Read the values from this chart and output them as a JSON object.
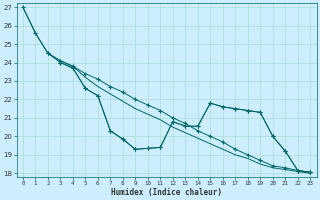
{
  "xlabel": "Humidex (Indice chaleur)",
  "bg_color": "#cceeff",
  "line_color": "#006666",
  "grid_color": "#aaddcc",
  "xlim": [
    -0.5,
    23.5
  ],
  "ylim": [
    17.8,
    27.2
  ],
  "xticks": [
    0,
    1,
    2,
    3,
    4,
    5,
    6,
    7,
    8,
    9,
    10,
    11,
    12,
    13,
    14,
    15,
    16,
    17,
    18,
    19,
    20,
    21,
    22,
    23
  ],
  "yticks": [
    18,
    19,
    20,
    21,
    22,
    23,
    24,
    25,
    26,
    27
  ],
  "series": [
    {
      "x": [
        0,
        1,
        2,
        3,
        4,
        5,
        6,
        7,
        8,
        9,
        10,
        11,
        12,
        13,
        14,
        15,
        16,
        17,
        18,
        19,
        20,
        21,
        22,
        23
      ],
      "y": [
        27.0,
        25.6,
        24.5,
        24.1,
        23.8,
        23.4,
        23.1,
        22.7,
        22.4,
        22.0,
        21.7,
        21.4,
        21.0,
        20.7,
        20.3,
        20.0,
        19.7,
        19.3,
        19.0,
        18.7,
        18.4,
        18.3,
        18.15,
        18.05
      ],
      "marker": true
    },
    {
      "x": [
        0,
        1,
        2,
        3,
        4,
        5,
        6,
        7,
        8,
        9,
        10,
        11,
        12,
        13,
        14,
        15,
        16,
        17,
        18,
        19,
        20,
        21,
        22,
        23
      ],
      "y": [
        27.0,
        25.6,
        24.5,
        24.1,
        23.8,
        23.2,
        22.7,
        22.3,
        21.9,
        21.5,
        21.2,
        20.9,
        20.5,
        20.2,
        19.9,
        19.6,
        19.3,
        19.0,
        18.8,
        18.5,
        18.3,
        18.2,
        18.1,
        18.0
      ],
      "marker": false
    },
    {
      "x": [
        2,
        3,
        4,
        5,
        6,
        7,
        8,
        9,
        10,
        11,
        12,
        13,
        14,
        15,
        16,
        17,
        18,
        19,
        20,
        21,
        22,
        23
      ],
      "y": [
        24.5,
        24.0,
        23.7,
        22.6,
        22.2,
        20.3,
        19.85,
        19.3,
        19.35,
        19.4,
        20.8,
        20.55,
        20.55,
        21.8,
        21.6,
        21.5,
        21.4,
        21.3,
        20.0,
        19.2,
        18.15,
        18.05
      ],
      "marker": true
    },
    {
      "x": [
        3,
        4,
        5,
        6,
        7,
        8,
        9,
        10,
        11,
        12,
        13,
        14,
        15,
        16,
        17,
        18,
        19,
        20,
        21,
        22,
        23
      ],
      "y": [
        24.0,
        23.7,
        22.6,
        22.2,
        20.3,
        19.85,
        19.3,
        19.35,
        19.4,
        20.8,
        20.55,
        20.55,
        21.8,
        21.6,
        21.5,
        21.4,
        21.3,
        20.0,
        19.2,
        18.15,
        18.05
      ],
      "marker": true
    }
  ]
}
